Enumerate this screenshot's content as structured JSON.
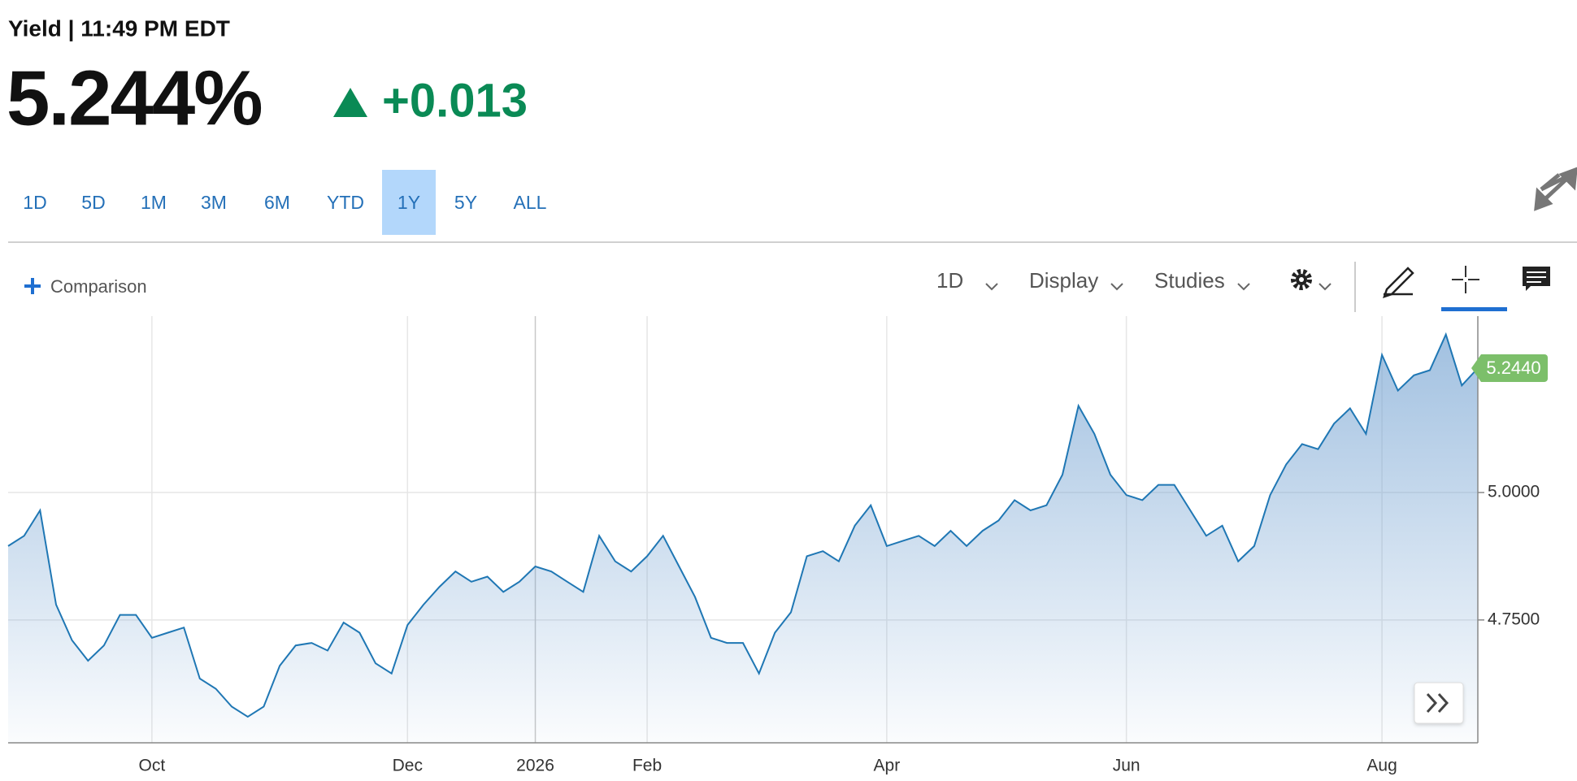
{
  "header": {
    "subtitle": "Yield | 11:49 PM EDT",
    "price": "5.244%",
    "change": "+0.013"
  },
  "ranges": {
    "items": [
      "1D",
      "5D",
      "1M",
      "3M",
      "6M",
      "YTD",
      "1Y",
      "5Y",
      "ALL"
    ],
    "active": 6
  },
  "toolbar": {
    "comparison": "Comparison",
    "interval": "1D",
    "display": "Display",
    "studies": "Studies"
  },
  "chart_data": {
    "type": "area",
    "color": "#1f77b4",
    "grid": true,
    "categories": [
      null,
      null,
      null,
      null,
      null,
      null,
      null,
      null,
      null,
      "Oct",
      null,
      null,
      null,
      null,
      null,
      null,
      null,
      null,
      null,
      null,
      null,
      null,
      null,
      null,
      null,
      "Dec",
      null,
      null,
      null,
      null,
      null,
      null,
      null,
      "2026",
      null,
      null,
      null,
      null,
      null,
      null,
      "Feb",
      null,
      null,
      null,
      null,
      null,
      null,
      null,
      null,
      null,
      null,
      null,
      null,
      null,
      null,
      "Apr",
      null,
      null,
      null,
      null,
      null,
      null,
      null,
      null,
      null,
      null,
      null,
      null,
      null,
      null,
      "Jun",
      null,
      null,
      null,
      null,
      null,
      null,
      null,
      null,
      null,
      null,
      null,
      null,
      null,
      null,
      null,
      "Aug",
      null,
      null,
      null,
      null,
      null,
      null
    ],
    "values": [
      4.895,
      4.915,
      4.965,
      4.78,
      4.71,
      4.67,
      4.7,
      4.76,
      4.76,
      4.715,
      4.725,
      4.735,
      4.635,
      4.615,
      4.58,
      4.56,
      4.58,
      4.66,
      4.7,
      4.705,
      4.69,
      4.745,
      4.725,
      4.665,
      4.645,
      4.74,
      4.78,
      4.815,
      4.845,
      4.825,
      4.835,
      4.805,
      4.825,
      4.855,
      4.845,
      4.825,
      4.805,
      4.915,
      4.865,
      4.845,
      4.875,
      4.915,
      4.855,
      4.795,
      4.715,
      4.705,
      4.705,
      4.645,
      4.725,
      4.765,
      4.875,
      4.885,
      4.865,
      4.935,
      4.975,
      4.895,
      4.905,
      4.915,
      4.895,
      4.925,
      4.895,
      4.925,
      4.945,
      4.985,
      4.965,
      4.975,
      5.035,
      5.17,
      5.115,
      5.035,
      4.995,
      4.985,
      5.015,
      5.015,
      4.965,
      4.915,
      4.935,
      4.865,
      4.895,
      4.995,
      5.055,
      5.095,
      5.085,
      5.135,
      5.165,
      5.115,
      5.27,
      5.2,
      5.23,
      5.24,
      5.31,
      5.21,
      5.244
    ],
    "last_value_label": "5.2440",
    "ylim": [
      4.509,
      5.346
    ],
    "yticks": [
      {
        "value": 4.75,
        "label": "4.7500"
      },
      {
        "value": 5.0,
        "label": "5.0000"
      }
    ]
  }
}
